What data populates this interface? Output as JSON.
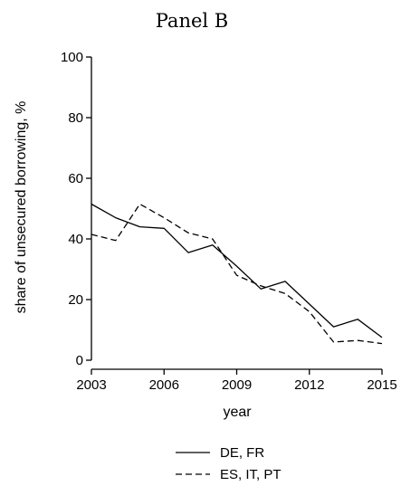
{
  "chart_data": {
    "type": "line",
    "title": "Panel B",
    "xlabel": "year",
    "ylabel": "share of unsecured borrowing, %",
    "xlim": [
      2003,
      2015
    ],
    "ylim": [
      0,
      100
    ],
    "xticks": [
      "2003",
      "2006",
      "2009",
      "2012",
      "2015"
    ],
    "yticks": [
      "0",
      "20",
      "40",
      "60",
      "80",
      "100"
    ],
    "grid": false,
    "legend_position": "bottom",
    "x": [
      2003,
      2004,
      2005,
      2006,
      2007,
      2008,
      2009,
      2010,
      2011,
      2012,
      2013,
      2014,
      2015
    ],
    "series": [
      {
        "name": "DE, FR",
        "dash": "solid",
        "color": "#000000",
        "values": [
          51.5,
          47.0,
          44.0,
          43.5,
          35.5,
          38.0,
          31.0,
          23.5,
          26.0,
          18.5,
          11.0,
          13.5,
          7.5
        ]
      },
      {
        "name": "ES, IT, PT",
        "dash": "dashed",
        "color": "#000000",
        "values": [
          41.5,
          39.5,
          51.5,
          47.0,
          42.0,
          40.0,
          28.0,
          24.5,
          22.0,
          16.0,
          6.0,
          6.5,
          5.5
        ]
      }
    ]
  }
}
